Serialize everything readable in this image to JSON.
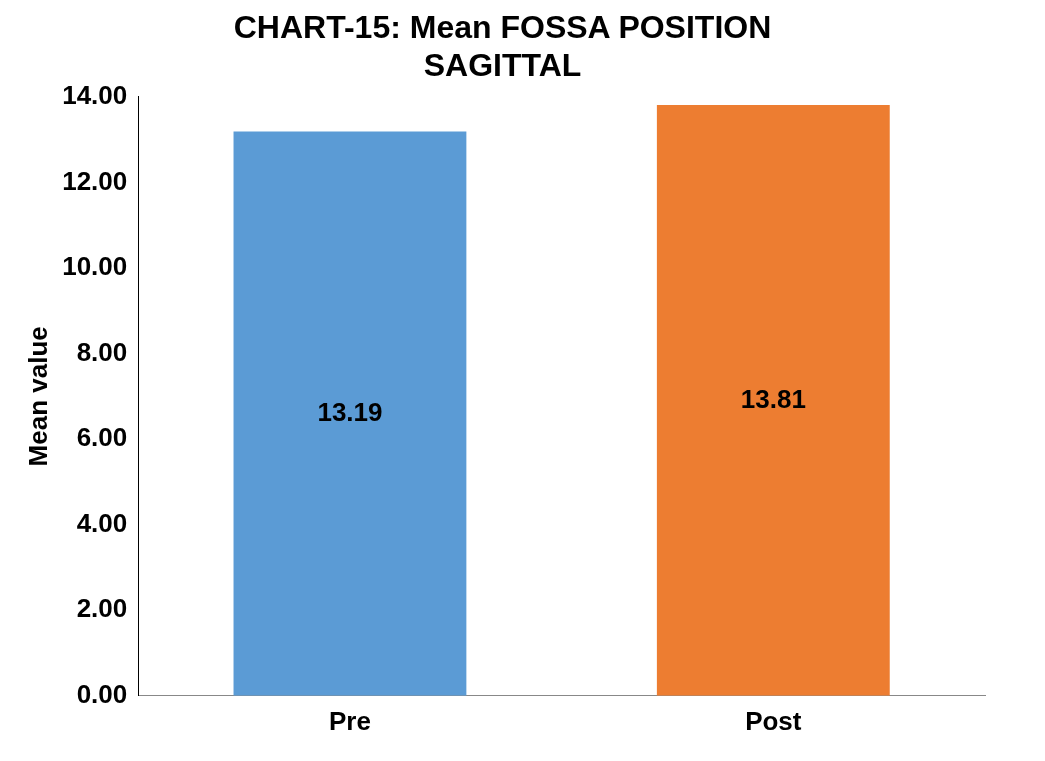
{
  "chart_data": {
    "type": "bar",
    "title": "CHART-15: Mean FOSSA POSITION SAGITTAL",
    "ylabel": "Mean value",
    "categories": [
      "Pre",
      "Post"
    ],
    "values": [
      13.19,
      13.81
    ],
    "colors": [
      "#5b9bd5",
      "#ed7d31"
    ],
    "ylim": [
      0,
      14
    ],
    "yticks": [
      {
        "value": 0,
        "label": "0.00"
      },
      {
        "value": 2,
        "label": "2.00"
      },
      {
        "value": 4,
        "label": "4.00"
      },
      {
        "value": 6,
        "label": "6.00"
      },
      {
        "value": 8,
        "label": "8.00"
      },
      {
        "value": 10,
        "label": "10.00"
      },
      {
        "value": 12,
        "label": "12.00"
      },
      {
        "value": 14,
        "label": "14.00"
      }
    ],
    "grid": false,
    "legend": false,
    "data_labels": true
  }
}
